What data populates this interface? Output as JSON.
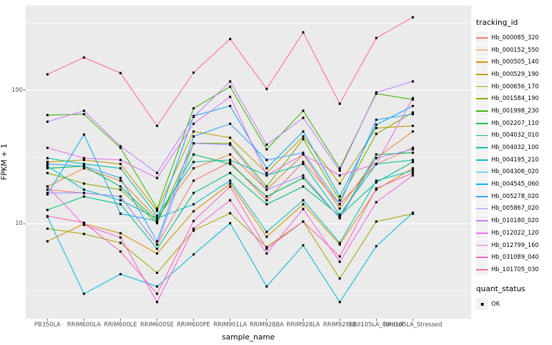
{
  "figure": {
    "y_axis": {
      "label": "FPKM + 1",
      "ticks": [
        {
          "label": "100",
          "value": 100
        },
        {
          "label": "10",
          "value": 10
        }
      ]
    },
    "x_axis": {
      "label": "sample_name"
    },
    "legend": {
      "tracking_title": "tracking_id",
      "quant_title": "quant_status",
      "quant_items": [
        {
          "label": "OK",
          "symbol": "black-square"
        }
      ]
    },
    "style": {
      "panel_bg": "#EBEBEB",
      "grid_color": "#FFFFFF",
      "tick_color": "#333333",
      "axis_text_color": "#4D4D4D",
      "point_color": "#000000",
      "legend_key_bg": "#F2F2F2"
    }
  },
  "chart_data": {
    "type": "line",
    "title": "",
    "xlabel": "sample_name",
    "ylabel": "FPKM + 1",
    "y_scale": "log10",
    "ylim": [
      1.95,
      430
    ],
    "major_gridlines": [
      10,
      100
    ],
    "minor_gridlines": [
      3.162,
      31.62,
      316.2
    ],
    "grid": true,
    "legend_position": "right",
    "point_shape": "filled-square",
    "quant_status": [
      "OK"
    ],
    "categories": [
      "PB350LA",
      "RRIM600LA",
      "RRIM600LE",
      "RRIM600SE",
      "RRIM600PE",
      "RRIM901LA",
      "RRIM928BA",
      "RRIM928LA",
      "RRIM928LE",
      "RRII105LA_Control",
      "RRII105LA_Stressed"
    ],
    "series": [
      {
        "name": "Hb_000085_320",
        "color": "#F8766D",
        "values": [
          18,
          17,
          16,
          7,
          21,
          29,
          15,
          29,
          14,
          28,
          37
        ]
      },
      {
        "name": "Hb_000152_550",
        "color": "#EA8331",
        "values": [
          19,
          26,
          21,
          11,
          26,
          33,
          18,
          33,
          13,
          31,
          49
        ]
      },
      {
        "name": "Hb_000505_140",
        "color": "#D89000",
        "values": [
          7.4,
          10,
          8.5,
          6,
          12.4,
          20,
          8,
          14,
          7,
          18,
          26
        ]
      },
      {
        "name": "Hb_000529_190",
        "color": "#C09B00",
        "values": [
          29,
          30,
          28,
          12.5,
          49,
          44,
          24,
          45,
          20,
          52,
          54
        ]
      },
      {
        "name": "Hb_000656_170",
        "color": "#A3A500",
        "values": [
          9.2,
          8.4,
          7.2,
          4.3,
          8.9,
          12,
          6.7,
          10.4,
          3.9,
          10.4,
          11.9
        ]
      },
      {
        "name": "Hb_001584_190",
        "color": "#7CAE00",
        "values": [
          24,
          20,
          18,
          10.1,
          40,
          40,
          19,
          43,
          15,
          47,
          68
        ]
      },
      {
        "name": "Hb_001998_230",
        "color": "#39B600",
        "values": [
          65,
          66,
          37,
          13,
          73,
          106,
          36,
          70,
          26,
          94,
          85
        ]
      },
      {
        "name": "Hb_002207_110",
        "color": "#00BB4E",
        "values": [
          26,
          27,
          19,
          10.5,
          33,
          28,
          16,
          22,
          11.1,
          33,
          34
        ]
      },
      {
        "name": "Hb_004032_010",
        "color": "#00BF7D",
        "values": [
          12.7,
          16,
          14,
          6.5,
          17,
          24,
          14,
          19,
          11.5,
          20.4,
          29
        ]
      },
      {
        "name": "Hb_004032_100",
        "color": "#00C1A3",
        "values": [
          31,
          28,
          26,
          11.5,
          29,
          30,
          23,
          28,
          11.7,
          28,
          30
        ]
      },
      {
        "name": "Hb_004195_210",
        "color": "#00BFC4",
        "values": [
          27,
          18,
          15,
          11,
          14,
          21,
          8.7,
          15,
          7.2,
          21,
          25
        ]
      },
      {
        "name": "Hb_004306_020",
        "color": "#00BADE",
        "values": [
          11.3,
          3,
          4.2,
          3.4,
          5.9,
          10.1,
          3.4,
          6.9,
          2.6,
          6.8,
          12.1
        ]
      },
      {
        "name": "Hb_004545_060",
        "color": "#00B0F6",
        "values": [
          16.6,
          46.5,
          11.9,
          10.5,
          64,
          76,
          26,
          49,
          16,
          55,
          76
        ]
      },
      {
        "name": "Hb_005278_020",
        "color": "#35A2FF",
        "values": [
          28,
          27,
          22,
          7.4,
          45,
          56,
          30,
          34,
          14,
          60,
          66
        ]
      },
      {
        "name": "Hb_005867_020",
        "color": "#9590FF",
        "values": [
          17,
          17,
          16,
          7,
          40,
          39,
          18,
          23,
          11,
          31,
          36
        ]
      },
      {
        "name": "Hb_010180_020",
        "color": "#C77CFF",
        "values": [
          58,
          70,
          38,
          24,
          63,
          116,
          39,
          62,
          25,
          96,
          116
        ]
      },
      {
        "name": "Hb_012022_120",
        "color": "#E76BF3",
        "values": [
          37,
          31,
          30,
          22,
          56,
          89,
          23,
          33,
          23,
          28,
          87
        ]
      },
      {
        "name": "Hb_012799_160",
        "color": "#FA62DB",
        "values": [
          19,
          9.8,
          7.9,
          2.6,
          9.2,
          15,
          6,
          12.9,
          5.2,
          14.5,
          23
        ]
      },
      {
        "name": "Hb_031089_040",
        "color": "#FF62BC",
        "values": [
          11.4,
          10.2,
          6.2,
          3,
          10.5,
          19,
          6.5,
          10.4,
          5.7,
          18.4,
          24
        ]
      },
      {
        "name": "Hb_101705_030",
        "color": "#FF6A98",
        "values": [
          131,
          175,
          134,
          54,
          135,
          241,
          102,
          270,
          79,
          245,
          350
        ]
      }
    ]
  }
}
